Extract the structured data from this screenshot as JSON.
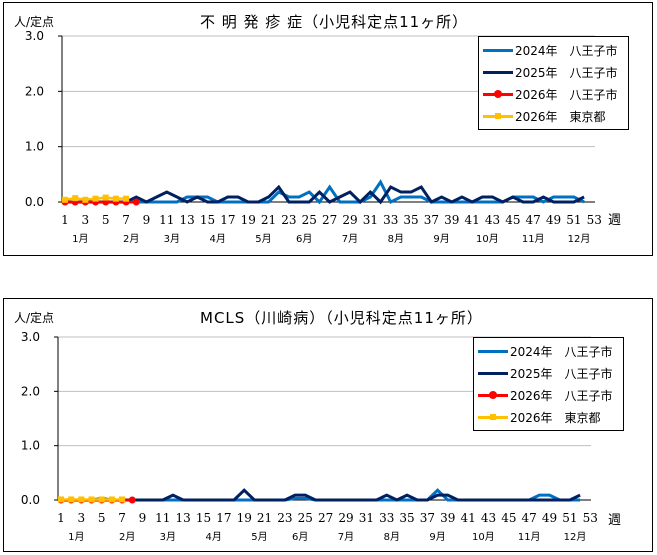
{
  "charts": [
    {
      "title": "不 明 発 疹 症（小児科定点11ヶ所）",
      "unit_label": "人/定点",
      "week_unit": "週",
      "legend": [
        {
          "label": "2024年　八王子市",
          "color": "#0070C0",
          "marker": "none"
        },
        {
          "label": "2025年　八王子市",
          "color": "#002060",
          "marker": "none"
        },
        {
          "label": "2026年　八王子市",
          "color": "#FF0000",
          "marker": "circle"
        },
        {
          "label": "2026年　東京都",
          "color": "#FFC000",
          "marker": "square"
        }
      ]
    },
    {
      "title": "MCLS（川崎病）（小児科定点11ヶ所）",
      "unit_label": "人/定点",
      "week_unit": "週",
      "legend": [
        {
          "label": "2024年　八王子市",
          "color": "#0070C0",
          "marker": "none"
        },
        {
          "label": "2025年　八王子市",
          "color": "#002060",
          "marker": "none"
        },
        {
          "label": "2026年　八王子市",
          "color": "#FF0000",
          "marker": "circle"
        },
        {
          "label": "2026年　東京都",
          "color": "#FFC000",
          "marker": "square"
        }
      ]
    }
  ],
  "chart_data": [
    {
      "type": "line",
      "title": "不 明 発 疹 症（小児科定点11ヶ所）",
      "ylabel": "人/定点",
      "xlabel": "週",
      "ylim": [
        0,
        3.0
      ],
      "yticks": [
        "0.0",
        "1.0",
        "2.0",
        "3.0"
      ],
      "xticks": [
        1,
        3,
        5,
        7,
        9,
        11,
        13,
        15,
        17,
        19,
        21,
        23,
        25,
        27,
        29,
        31,
        33,
        35,
        37,
        39,
        41,
        43,
        45,
        47,
        49,
        51,
        53
      ],
      "month_labels": [
        {
          "label": "1月",
          "week": 2.5
        },
        {
          "label": "2月",
          "week": 7.5
        },
        {
          "label": "3月",
          "week": 11.5
        },
        {
          "label": "4月",
          "week": 16
        },
        {
          "label": "5月",
          "week": 20.5
        },
        {
          "label": "6月",
          "week": 24.5
        },
        {
          "label": "7月",
          "week": 29
        },
        {
          "label": "8月",
          "week": 33.5
        },
        {
          "label": "9月",
          "week": 38
        },
        {
          "label": "10月",
          "week": 42.5
        },
        {
          "label": "11月",
          "week": 47
        },
        {
          "label": "12月",
          "week": 51.5
        }
      ],
      "grid": true,
      "legend_position": "upper right",
      "series": [
        {
          "name": "2024年　八王子市",
          "color": "#0070C0",
          "x_start": 1,
          "values": [
            0,
            0,
            0,
            0,
            0,
            0,
            0,
            0,
            0,
            0,
            0,
            0,
            0.09,
            0.09,
            0.09,
            0,
            0,
            0,
            0,
            0,
            0,
            0.18,
            0.09,
            0.09,
            0.18,
            0,
            0.27,
            0,
            0,
            0,
            0.09,
            0.36,
            0,
            0.09,
            0.09,
            0.09,
            0,
            0,
            0,
            0,
            0,
            0,
            0,
            0,
            0.09,
            0.09,
            0.09,
            0,
            0.09,
            0.09,
            0.09,
            0
          ]
        },
        {
          "name": "2025年　八王子市",
          "color": "#002060",
          "x_start": 1,
          "values": [
            0,
            0,
            0,
            0,
            0,
            0,
            0,
            0.09,
            0,
            0.09,
            0.18,
            0.09,
            0,
            0.09,
            0,
            0,
            0.09,
            0.09,
            0,
            0,
            0.09,
            0.27,
            0,
            0,
            0,
            0.18,
            0,
            0.09,
            0.18,
            0,
            0.18,
            0,
            0.27,
            0.18,
            0.18,
            0.27,
            0,
            0.09,
            0,
            0.09,
            0,
            0.09,
            0.09,
            0,
            0.09,
            0,
            0,
            0.09,
            0,
            0,
            0,
            0.09
          ]
        },
        {
          "name": "2026年　八王子市",
          "color": "#FF0000",
          "marker": "circle",
          "x_start": 1,
          "values": [
            0,
            0,
            0,
            0,
            0,
            0,
            0,
            0
          ]
        },
        {
          "name": "2026年　東京都",
          "color": "#FFC000",
          "marker": "square",
          "x_start": 1,
          "values": [
            0.04,
            0.07,
            0.04,
            0.06,
            0.08,
            0.06,
            0.06
          ]
        }
      ]
    },
    {
      "type": "line",
      "title": "MCLS（川崎病）（小児科定点11ヶ所）",
      "ylabel": "人/定点",
      "xlabel": "週",
      "ylim": [
        0,
        3.0
      ],
      "yticks": [
        "0.0",
        "1.0",
        "2.0",
        "3.0"
      ],
      "xticks": [
        1,
        3,
        5,
        7,
        9,
        11,
        13,
        15,
        17,
        19,
        21,
        23,
        25,
        27,
        29,
        31,
        33,
        35,
        37,
        39,
        41,
        43,
        45,
        47,
        49,
        51,
        53
      ],
      "month_labels": [
        {
          "label": "1月",
          "week": 2.5
        },
        {
          "label": "2月",
          "week": 7.5
        },
        {
          "label": "3月",
          "week": 11.5
        },
        {
          "label": "4月",
          "week": 16
        },
        {
          "label": "5月",
          "week": 20.5
        },
        {
          "label": "6月",
          "week": 24.5
        },
        {
          "label": "7月",
          "week": 29
        },
        {
          "label": "8月",
          "week": 33.5
        },
        {
          "label": "9月",
          "week": 38
        },
        {
          "label": "10月",
          "week": 42.5
        },
        {
          "label": "11月",
          "week": 47
        },
        {
          "label": "12月",
          "week": 51.5
        }
      ],
      "grid": true,
      "legend_position": "upper right",
      "series": [
        {
          "name": "2024年　八王子市",
          "color": "#0070C0",
          "x_start": 1,
          "values": [
            0,
            0,
            0,
            0,
            0.03,
            0,
            0,
            0,
            0,
            0,
            0,
            0,
            0,
            0,
            0,
            0,
            0,
            0,
            0,
            0,
            0,
            0,
            0,
            0.03,
            0.03,
            0,
            0,
            0,
            0,
            0,
            0,
            0,
            0,
            0,
            0,
            0,
            0,
            0.18,
            0,
            0,
            0,
            0,
            0,
            0,
            0,
            0,
            0,
            0.09,
            0.09,
            0,
            0,
            0
          ]
        },
        {
          "name": "2025年　八王子市",
          "color": "#002060",
          "x_start": 1,
          "values": [
            0,
            0,
            0,
            0,
            0,
            0,
            0,
            0,
            0,
            0,
            0,
            0.09,
            0,
            0,
            0,
            0,
            0,
            0,
            0.18,
            0,
            0,
            0,
            0,
            0.09,
            0.09,
            0,
            0,
            0,
            0,
            0,
            0,
            0,
            0.09,
            0,
            0.09,
            0,
            0,
            0.09,
            0.09,
            0,
            0,
            0,
            0,
            0,
            0,
            0,
            0,
            0,
            0,
            0,
            0,
            0.09
          ]
        },
        {
          "name": "2026年　八王子市",
          "color": "#FF0000",
          "marker": "circle",
          "x_start": 1,
          "values": [
            0,
            0,
            0,
            0,
            0,
            0,
            0,
            0
          ]
        },
        {
          "name": "2026年　東京都",
          "color": "#FFC000",
          "marker": "square",
          "x_start": 1,
          "values": [
            0.01,
            0.01,
            0.01,
            0.01,
            0.01,
            0.01,
            0.01
          ]
        }
      ]
    }
  ]
}
